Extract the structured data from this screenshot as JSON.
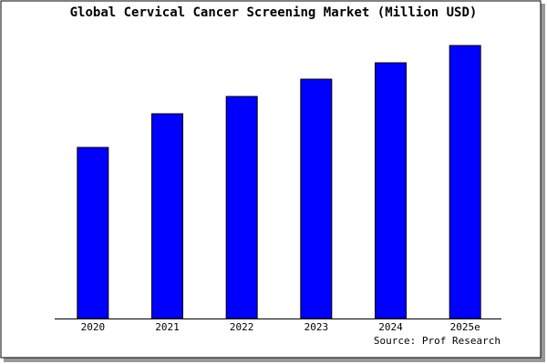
{
  "chart_data": {
    "type": "bar",
    "title": "Global Cervical Cancer Screening Market (Million USD)",
    "categories": [
      "2020",
      "2021",
      "2022",
      "2023",
      "2024",
      "2025e"
    ],
    "values": [
      188,
      225,
      244,
      263,
      281,
      300
    ],
    "color": "#0000ff",
    "ylim": [
      0,
      300
    ],
    "source": "Source: Prof Research"
  }
}
